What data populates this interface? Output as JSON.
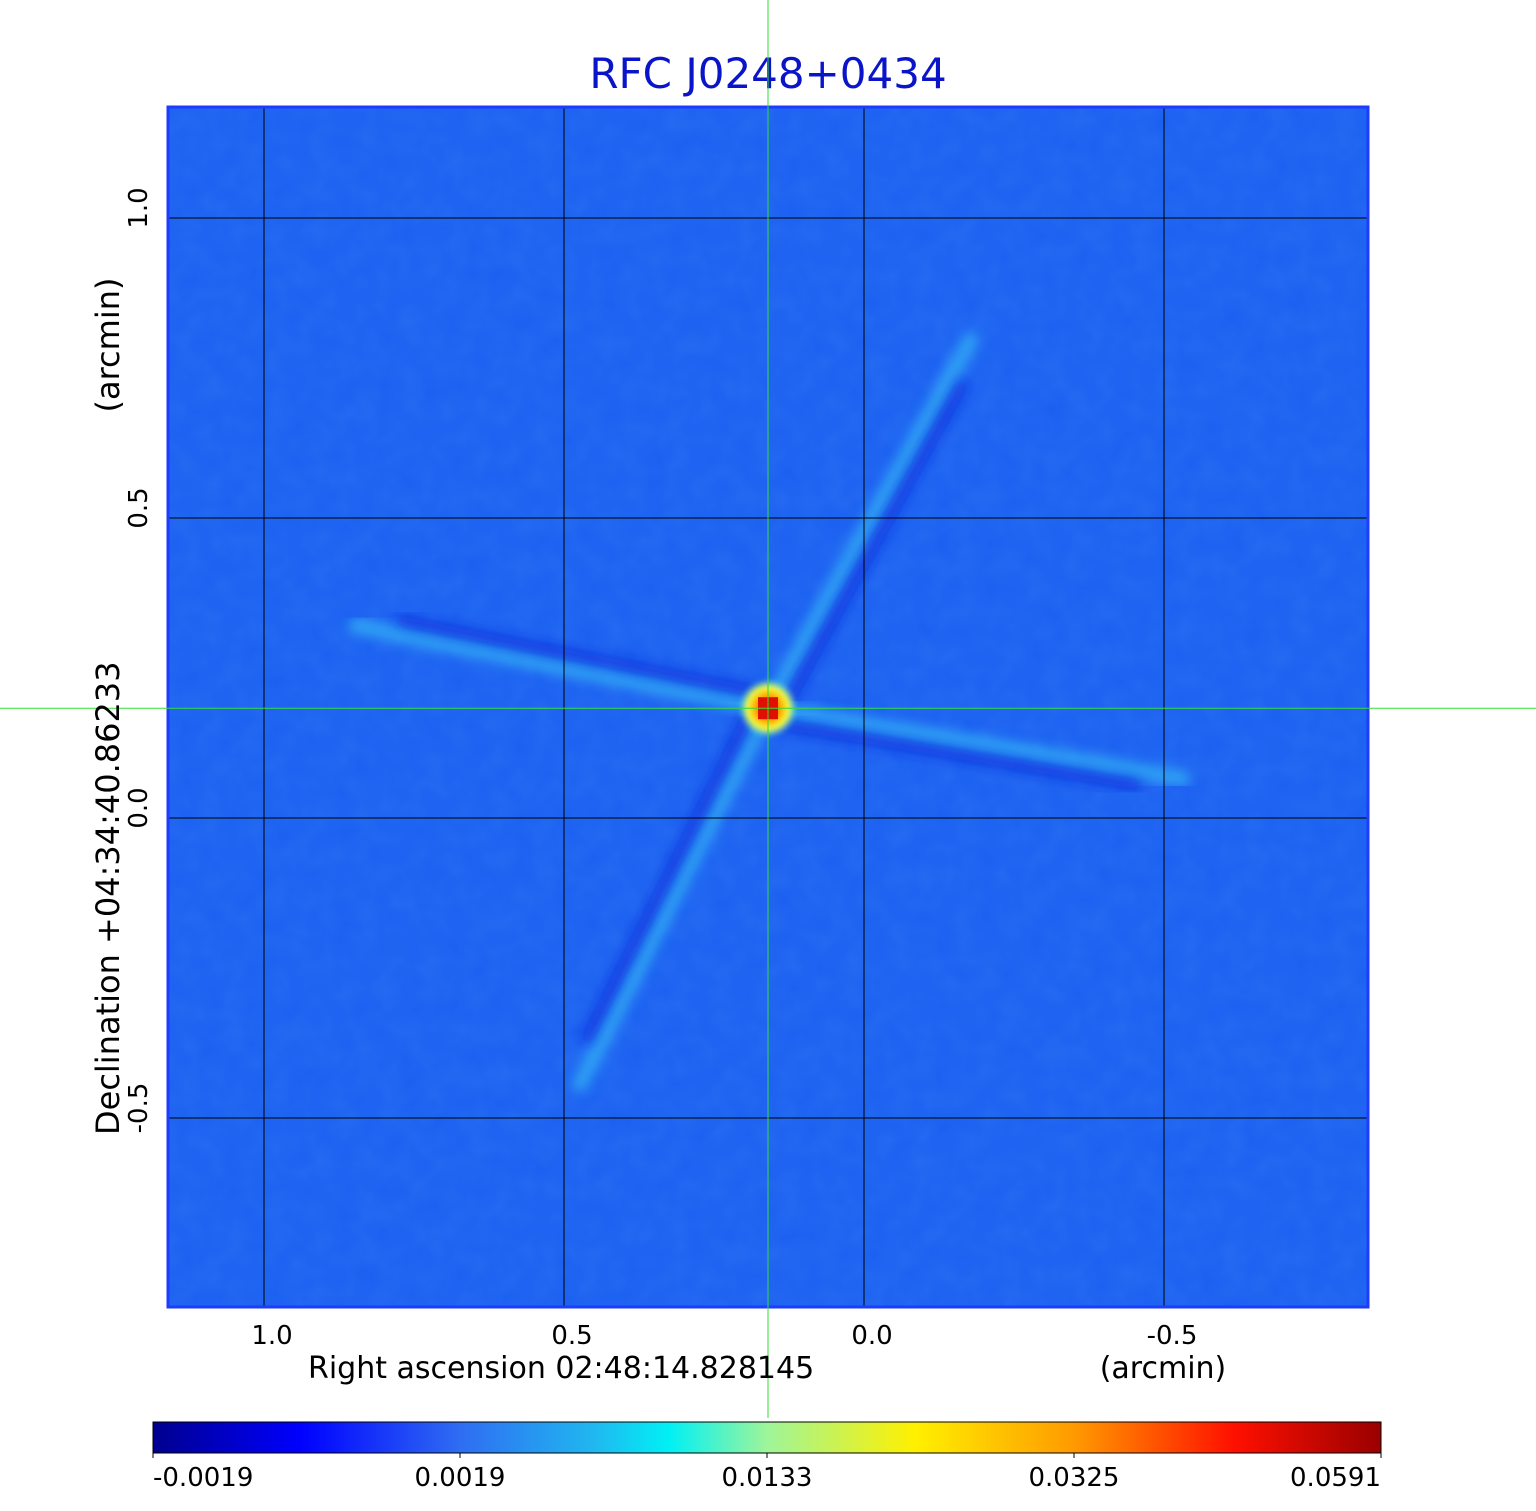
{
  "chart_data": {
    "type": "heatmap",
    "title": "RFC J0248+0434",
    "xlabel": "Right ascension  02:48:14.828145",
    "xunit": "(arcmin)",
    "ylabel": "Declination  +04:34:40.86233",
    "yunit": "(arcmin)",
    "xlim": [
      1.16,
      -0.84
    ],
    "ylim": [
      -0.815,
      1.185
    ],
    "x_ticks": [
      {
        "value": 1.0,
        "label": "1.0"
      },
      {
        "value": 0.5,
        "label": "0.5"
      },
      {
        "value": 0.0,
        "label": "0.0"
      },
      {
        "value": -0.5,
        "label": "-0.5"
      }
    ],
    "y_ticks": [
      {
        "value": 1.0,
        "label": "1.0"
      },
      {
        "value": 0.5,
        "label": "0.5"
      },
      {
        "value": 0.0,
        "label": "0.0"
      },
      {
        "value": -0.5,
        "label": "-0.5"
      }
    ],
    "grid": true,
    "peak": {
      "x": 0.16,
      "y": 0.183
    },
    "colorbar": {
      "colormap": "jet",
      "ticks": [
        "-0.0019",
        "0.0019",
        "0.0133",
        "0.0325",
        "0.0591"
      ]
    },
    "colors": {
      "title": "#0a14c8",
      "frame": "#1e3cff",
      "grid": "#000000",
      "crosshair": "#33dd33",
      "background": "#1a5ff0"
    }
  }
}
